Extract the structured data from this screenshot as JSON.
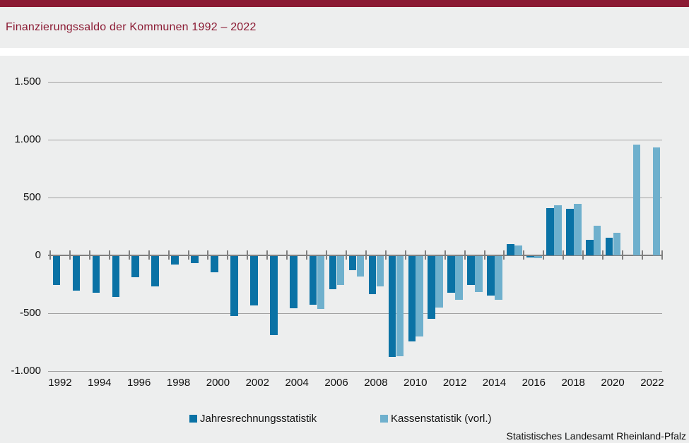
{
  "title": "Finanzierungssaldo der Kommunen 1992 – 2022",
  "footer": "Statistisches Landesamt Rheinland-Pfalz",
  "colors": {
    "accent_maroon": "#8b1a33",
    "background": "#edeeee",
    "series_dark": "#0a72a5",
    "series_light": "#6fb0cd",
    "gridline": "#a2a2a2",
    "axis": "#808080"
  },
  "legend": {
    "items": [
      {
        "label": "Jahresrechnungsstatistik",
        "color": "#0a72a5"
      },
      {
        "label": "Kassenstatistik (vorl.)",
        "color": "#6fb0cd"
      }
    ]
  },
  "chart_data": {
    "type": "bar",
    "title": "Finanzierungssaldo der Kommunen 1992 – 2022",
    "categories": [
      1992,
      1993,
      1994,
      1995,
      1996,
      1997,
      1998,
      1999,
      2000,
      2001,
      2002,
      2003,
      2004,
      2005,
      2006,
      2007,
      2008,
      2009,
      2010,
      2011,
      2012,
      2013,
      2014,
      2015,
      2016,
      2017,
      2018,
      2019,
      2020,
      2021,
      2022
    ],
    "series": [
      {
        "name": "Jahresrechnungsstatistik",
        "color": "#0a72a5",
        "values": [
          -250,
          -300,
          -320,
          -355,
          -185,
          -265,
          -75,
          -60,
          -140,
          -520,
          -425,
          -685,
          -450,
          -420,
          -285,
          -120,
          -330,
          -870,
          -740,
          -540,
          -320,
          -250,
          -340,
          100,
          -10,
          410,
          400,
          135,
          155,
          null,
          null
        ]
      },
      {
        "name": "Kassenstatistik (vorl.)",
        "color": "#6fb0cd",
        "values": [
          null,
          null,
          null,
          null,
          null,
          null,
          null,
          null,
          null,
          null,
          null,
          null,
          null,
          -460,
          -250,
          -175,
          -260,
          -865,
          -695,
          -445,
          -380,
          -310,
          -375,
          85,
          -20,
          430,
          445,
          255,
          195,
          960,
          935
        ]
      }
    ],
    "ylim": [
      -1000,
      1500
    ],
    "ytick_values": [
      1500,
      1000,
      500,
      0,
      -500,
      -1000
    ],
    "ytick_labels": [
      "1.500",
      "1.000",
      "500",
      "0",
      "-500",
      "-1.000"
    ],
    "xtick_years": [
      "1992",
      "1994",
      "1996",
      "1998",
      "2000",
      "2002",
      "2004",
      "2006",
      "2008",
      "2010",
      "2012",
      "2014",
      "2016",
      "2018",
      "2020",
      "2022"
    ],
    "grid": true,
    "legend_position": "bottom"
  }
}
